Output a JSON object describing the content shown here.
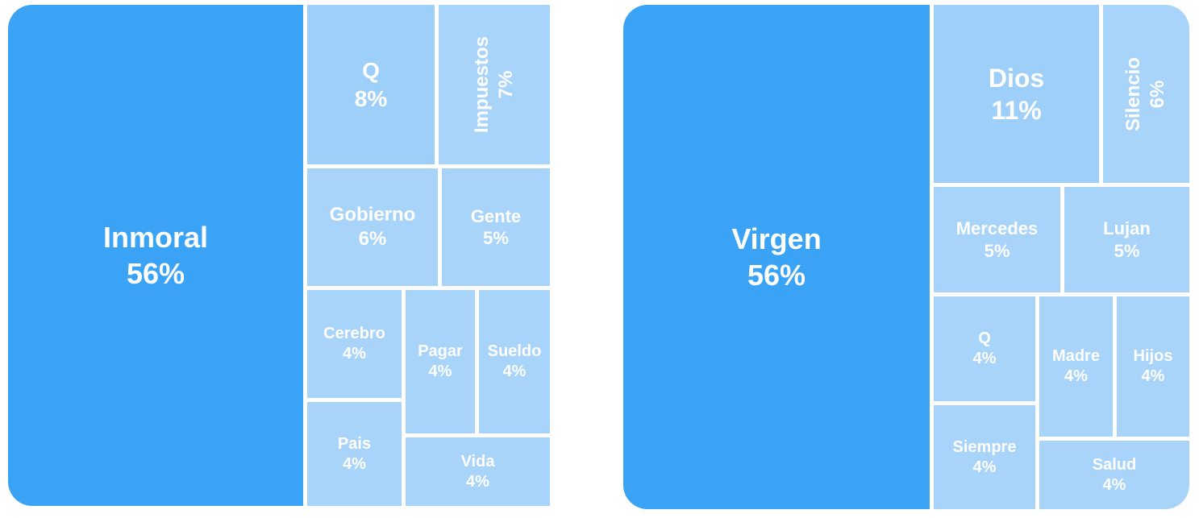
{
  "chart_data": [
    {
      "type": "treemap",
      "items": [
        {
          "label": "Inmoral",
          "value": 56,
          "text": "56%"
        },
        {
          "label": "Q",
          "value": 8,
          "text": "8%"
        },
        {
          "label": "Impuestos",
          "value": 7,
          "text": "7%"
        },
        {
          "label": "Gobierno",
          "value": 6,
          "text": "6%"
        },
        {
          "label": "Gente",
          "value": 5,
          "text": "5%"
        },
        {
          "label": "Cerebro",
          "value": 4,
          "text": "4%"
        },
        {
          "label": "Pagar",
          "value": 4,
          "text": "4%"
        },
        {
          "label": "Sueldo",
          "value": 4,
          "text": "4%"
        },
        {
          "label": "Pais",
          "value": 4,
          "text": "4%"
        },
        {
          "label": "Vida",
          "value": 4,
          "text": "4%"
        }
      ]
    },
    {
      "type": "treemap",
      "items": [
        {
          "label": "Virgen",
          "value": 56,
          "text": "56%"
        },
        {
          "label": "Dios",
          "value": 11,
          "text": "11%"
        },
        {
          "label": "Silencio",
          "value": 6,
          "text": "6%"
        },
        {
          "label": "Mercedes",
          "value": 5,
          "text": "5%"
        },
        {
          "label": "Lujan",
          "value": 5,
          "text": "5%"
        },
        {
          "label": "Q",
          "value": 4,
          "text": "4%"
        },
        {
          "label": "Madre",
          "value": 4,
          "text": "4%"
        },
        {
          "label": "Hijos",
          "value": 4,
          "text": "4%"
        },
        {
          "label": "Siempre",
          "value": 4,
          "text": "4%"
        },
        {
          "label": "Salud",
          "value": 4,
          "text": "4%"
        }
      ]
    }
  ],
  "colors": {
    "primary": "#3aa3f5",
    "secondary": "#a8d4fa",
    "secondary_alt": "#9dcff9"
  }
}
